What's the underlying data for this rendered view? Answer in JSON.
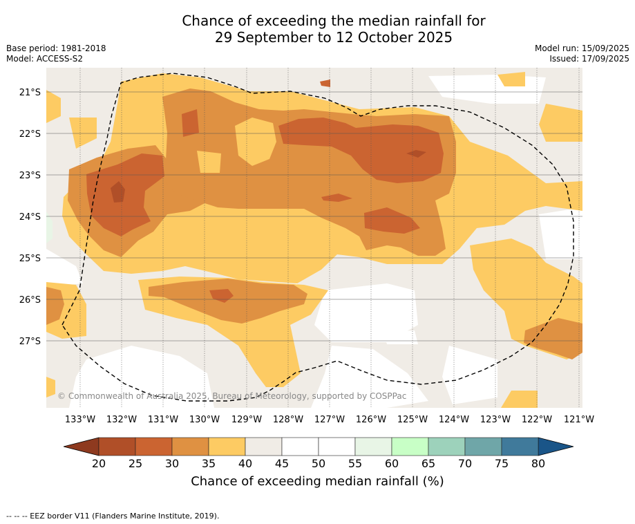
{
  "title": {
    "line1": "Chance of exceeding the median rainfall for",
    "line2": "29 September to 12 October 2025"
  },
  "meta": {
    "base_period": "Base period: 1981-2018",
    "model": "Model: ACCESS-S2",
    "model_run": "Model run: 15/09/2025",
    "issued": "Issued: 17/09/2025"
  },
  "map": {
    "lat_labels": [
      "21°S",
      "22°S",
      "23°S",
      "24°S",
      "25°S",
      "26°S",
      "27°S"
    ],
    "lon_labels": [
      "133°W",
      "132°W",
      "131°W",
      "130°W",
      "129°W",
      "128°W",
      "127°W",
      "126°W",
      "125°W",
      "124°W",
      "123°W",
      "122°W",
      "121°W"
    ],
    "copyright": "© Commonwealth of Australia 2025, Bureau of Meteorology, supported by COSPPac",
    "background_color": "#f0ece6"
  },
  "colorbar": {
    "ticks": [
      "20",
      "25",
      "30",
      "35",
      "40",
      "45",
      "50",
      "55",
      "60",
      "65",
      "70",
      "75",
      "80"
    ],
    "colors": [
      "#b04f28",
      "#cb6431",
      "#df9142",
      "#fdcb63",
      "#f0ece6",
      "#ffffff",
      "#ffffff",
      "#e8f5e6",
      "#c8ffc6",
      "#9dd2bb",
      "#6fa6a8",
      "#407a9b"
    ],
    "under_color": "#8e3a1f",
    "over_color": "#1a5588",
    "label": "Chance of exceeding median rainfall (%)"
  },
  "footer": {
    "eez_legend": "--  --  -- EEZ border V11 (Flanders Marine Institute, 2019)."
  }
}
